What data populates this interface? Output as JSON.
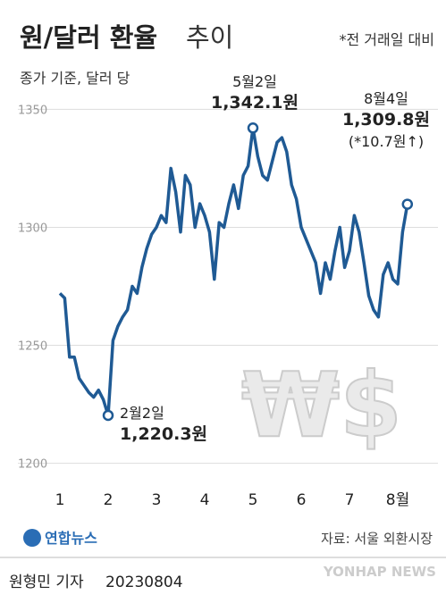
{
  "chart_data": {
    "type": "line",
    "title": "원/달러 환율",
    "title_suffix": "추이",
    "note": "*전 거래일 대비",
    "subtitle": "종가 기준, 달러 당",
    "categories": [
      "1",
      null,
      null,
      null,
      null,
      null,
      null,
      null,
      null,
      null,
      "2",
      null,
      null,
      null,
      null,
      null,
      null,
      null,
      null,
      null,
      "3",
      null,
      null,
      null,
      null,
      null,
      null,
      null,
      null,
      null,
      "4",
      null,
      null,
      null,
      null,
      null,
      null,
      null,
      null,
      null,
      "5",
      null,
      null,
      null,
      null,
      null,
      null,
      null,
      null,
      null,
      "6",
      null,
      null,
      null,
      null,
      null,
      null,
      null,
      null,
      null,
      "7",
      null,
      null,
      null,
      null,
      null,
      null,
      null,
      null,
      null,
      "8월",
      null,
      null
    ],
    "series": [
      {
        "name": "원/달러 환율",
        "color": "#1f5a94",
        "values": [
          1272,
          1270,
          1245,
          1245,
          1236,
          1233,
          1230,
          1228,
          1231,
          1227,
          1220.3,
          1252,
          1258,
          1262,
          1265,
          1275,
          1272,
          1283,
          1291,
          1297,
          1300,
          1305,
          1302,
          1325,
          1315,
          1298,
          1322,
          1318,
          1300,
          1310,
          1305,
          1298,
          1278,
          1302,
          1300,
          1310,
          1318,
          1308,
          1322,
          1326,
          1342.1,
          1330,
          1322,
          1320,
          1328,
          1336,
          1338,
          1332,
          1318,
          1312,
          1300,
          1295,
          1290,
          1285,
          1272,
          1285,
          1278,
          1290,
          1300,
          1283,
          1290,
          1305,
          1298,
          1285,
          1271,
          1265,
          1262,
          1280,
          1285,
          1278,
          1276,
          1298,
          1309.8
        ]
      }
    ],
    "ylim": [
      1190,
      1360
    ],
    "yticks": [
      1200,
      1250,
      1300,
      1350
    ],
    "grid": true,
    "annotations": [
      [
        "2월2일",
        "1,220.3원"
      ],
      [
        "5월2일",
        "1,342.1원"
      ],
      [
        "8월4일",
        "1,309.8원",
        "(*10.7원↑)"
      ]
    ],
    "logo": "연합뉴스",
    "source": "자료: 서울 외환시장",
    "byline": "원형민 기자",
    "date": "20230804",
    "watermark": "YONHAP NEWS"
  }
}
